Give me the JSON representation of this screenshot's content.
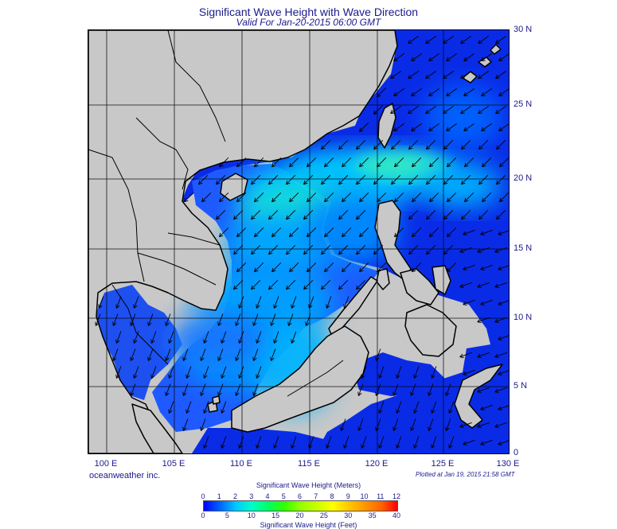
{
  "title": "Significant Wave Height with Wave Direction",
  "subtitle": "Valid For Jan-20-2015 06:00 GMT",
  "lon_labels": [
    "100 E",
    "105 E",
    "110 E",
    "115 E",
    "120 E",
    "125 E",
    "130 E"
  ],
  "lat_labels": [
    "30 N",
    "25 N",
    "20 N",
    "15 N",
    "10 N",
    "5 N",
    "0"
  ],
  "footer": {
    "brand": "oceanweather inc.",
    "plotted": "Plotted at Jan 19, 2015 21:58 GMT"
  },
  "legend": {
    "title_meters": "Significant Wave Height (Meters)",
    "title_feet": "Significant Wave Height (Feet)",
    "meter_ticks": [
      "0",
      "1",
      "2",
      "3",
      "4",
      "5",
      "6",
      "7",
      "8",
      "9",
      "10",
      "11",
      "12"
    ],
    "feet_ticks": [
      "0",
      "5",
      "10",
      "15",
      "20",
      "25",
      "30",
      "35",
      "40"
    ]
  },
  "colors": {
    "land": "#c8c8c8",
    "deep_blue": "#0a2be6",
    "mid_blue": "#1e64ff",
    "cyan": "#00c8ff",
    "text": "#1a1a8c",
    "scale": [
      "#0000ff",
      "#0064ff",
      "#00c8ff",
      "#00ffc8",
      "#00ff64",
      "#32ff00",
      "#96ff00",
      "#c8ff00",
      "#ffff00",
      "#ffc800",
      "#ff9600",
      "#ff6400",
      "#ff0000"
    ]
  },
  "map_data": {
    "extent": {
      "lon": [
        100,
        130
      ],
      "lat": [
        0,
        30
      ]
    },
    "wave_direction_note": "arrows point toward southwest (NE monsoon)",
    "dominant_direction_deg": 225
  }
}
